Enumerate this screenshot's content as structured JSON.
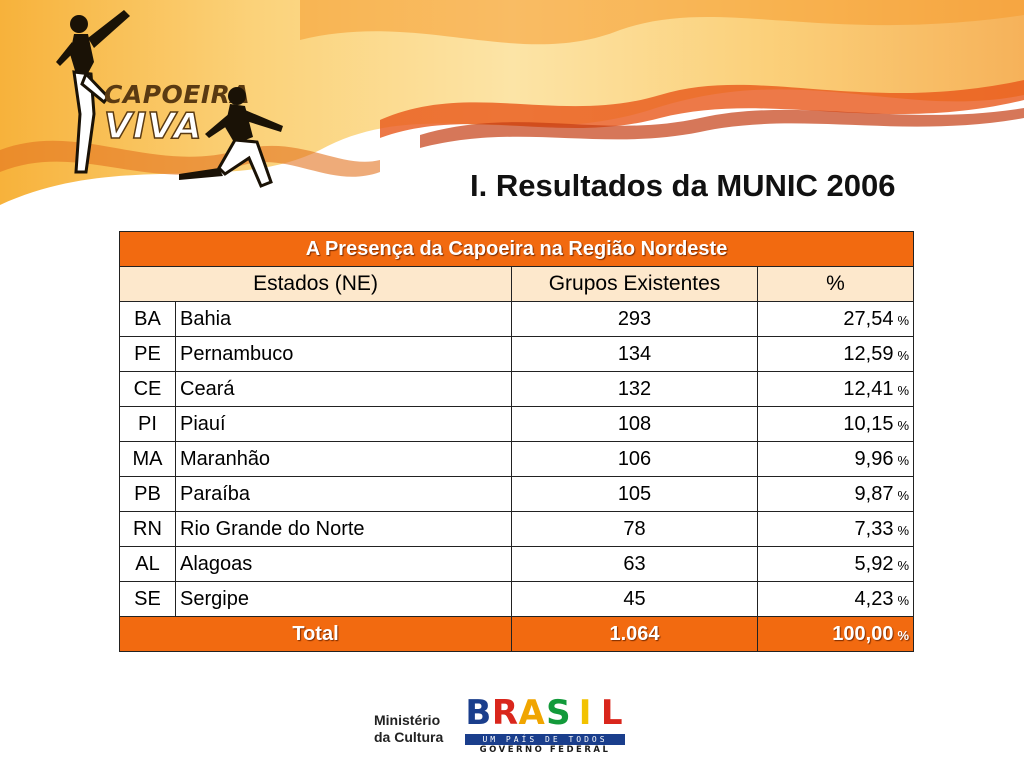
{
  "logo": {
    "line1": "CAPOEIRA",
    "line2": "VIVA"
  },
  "title": "I. Resultados da MUNIC 2006",
  "table": {
    "caption": "A Presença da Capoeira na Região Nordeste",
    "headers": {
      "states": "Estados (NE)",
      "groups": "Grupos Existentes",
      "percent": "%"
    },
    "percent_sign": "%",
    "rows": [
      {
        "uf": "BA",
        "name": "Bahia",
        "groups": "293",
        "percent": "27,54"
      },
      {
        "uf": "PE",
        "name": "Pernambuco",
        "groups": "134",
        "percent": "12,59"
      },
      {
        "uf": "CE",
        "name": "Ceará",
        "groups": "132",
        "percent": "12,41"
      },
      {
        "uf": "PI",
        "name": "Piauí",
        "groups": "108",
        "percent": "10,15"
      },
      {
        "uf": "MA",
        "name": "Maranhão",
        "groups": "106",
        "percent": "9,96"
      },
      {
        "uf": "PB",
        "name": "Paraíba",
        "groups": "105",
        "percent": "9,87"
      },
      {
        "uf": "RN",
        "name": "Rio Grande do Norte",
        "groups": "78",
        "percent": "7,33"
      },
      {
        "uf": "AL",
        "name": "Alagoas",
        "groups": "63",
        "percent": "5,92"
      },
      {
        "uf": "SE",
        "name": "Sergipe",
        "groups": "45",
        "percent": "4,23"
      }
    ],
    "total": {
      "label": "Total",
      "groups": "1.064",
      "percent": "100,00"
    }
  },
  "footer": {
    "ministry_line1": "Ministério",
    "ministry_line2": "da Cultura",
    "brasil_word": [
      "B",
      "R",
      "A",
      "S",
      "I",
      "L"
    ],
    "brasil_colors": [
      "#1a3e8c",
      "#d9261c",
      "#f0a500",
      "#129a3a",
      "#f2c200",
      "#d9261c"
    ],
    "brasil_tagline": "UM PAÍS DE TODOS",
    "brasil_gov": "GOVERNO FEDERAL"
  },
  "colors": {
    "accent_orange": "#f26a10",
    "header_cream": "#fde8cc",
    "banner_brown": "#5a3a12"
  }
}
